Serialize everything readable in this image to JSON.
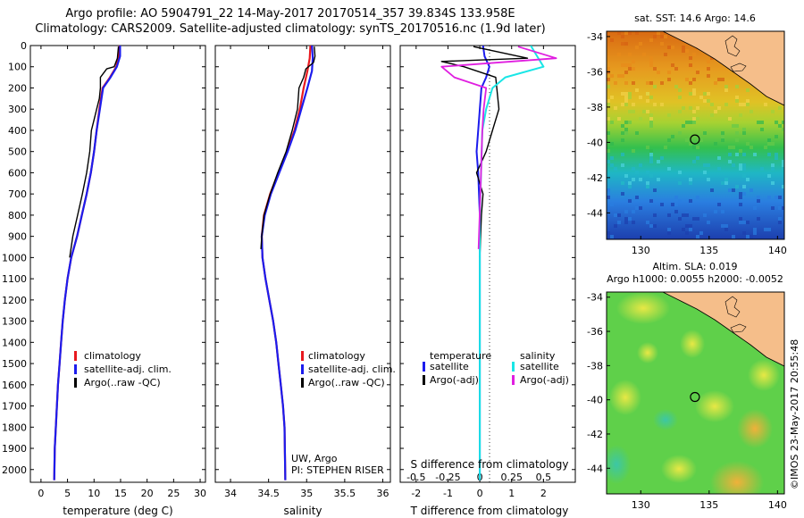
{
  "titles": {
    "line1": "Argo profile: AO 5904791_22 14-May-2017 20170514_357 39.834S 133.958E",
    "line2": "Climatology: CARS2009. Satellite-adjusted climatology: synTS_20170516.nc (1.9d later)"
  },
  "credit": "©IMOS 23-May-2017 20:55:48",
  "colors": {
    "climatology": "#e8191f",
    "satellite": "#1c1ced",
    "argo": "#000000",
    "salinity_satellite": "#19e6e6",
    "salinity_argo": "#e01ee0"
  },
  "chart_data": [
    {
      "type": "line",
      "xlabel": "temperature (deg C)",
      "ylabel": "",
      "xlim": [
        -2,
        31
      ],
      "ylim": [
        2060,
        0
      ],
      "xticks": [
        0,
        5,
        10,
        15,
        20,
        25,
        30
      ],
      "yticks": [
        0,
        100,
        200,
        300,
        400,
        500,
        600,
        700,
        800,
        900,
        1000,
        1100,
        1200,
        1300,
        1400,
        1500,
        1600,
        1700,
        1800,
        1900,
        2000
      ],
      "legend": [
        "climatology",
        "satellite-adj. clim.",
        "Argo(..raw -QC)"
      ],
      "legend_position": "lower-center",
      "series": [
        {
          "name": "climatology",
          "x": [
            14.8,
            14.6,
            14.2,
            13.0,
            11.6,
            11.0,
            10.5,
            10.0,
            9.4,
            8.6,
            7.7,
            6.8,
            5.7,
            5.0,
            4.5,
            4.1,
            3.8,
            3.5,
            3.2,
            3.0,
            2.8,
            2.6,
            2.5
          ],
          "y": [
            0,
            50,
            100,
            150,
            200,
            300,
            400,
            500,
            600,
            700,
            800,
            900,
            1000,
            1100,
            1200,
            1300,
            1400,
            1500,
            1600,
            1700,
            1800,
            1900,
            2050
          ]
        },
        {
          "name": "satellite-adj. clim.",
          "x": [
            14.9,
            14.9,
            14.3,
            13.1,
            11.7,
            11.1,
            10.5,
            10.0,
            9.4,
            8.6,
            7.7,
            6.8,
            5.7,
            5.0,
            4.5,
            4.1,
            3.8,
            3.5,
            3.2,
            3.0,
            2.8,
            2.6,
            2.5
          ],
          "y": [
            0,
            50,
            100,
            150,
            200,
            300,
            400,
            500,
            600,
            700,
            800,
            900,
            1000,
            1100,
            1200,
            1300,
            1400,
            1500,
            1600,
            1700,
            1800,
            1900,
            2050
          ]
        },
        {
          "name": "Argo(..raw -QC)",
          "x": [
            14.6,
            14.4,
            13.8,
            12.4,
            11.2,
            11.2,
            11.0,
            10.5,
            10.0,
            9.5,
            9.2,
            8.6,
            7.8,
            6.9,
            6.0,
            5.4
          ],
          "y": [
            5,
            60,
            100,
            110,
            150,
            200,
            250,
            300,
            350,
            400,
            500,
            600,
            700,
            800,
            900,
            1000
          ]
        }
      ]
    },
    {
      "type": "line",
      "xlabel": "salinity",
      "ylabel": "",
      "xlim": [
        33.8,
        36.1
      ],
      "ylim": [
        2060,
        0
      ],
      "xticks": [
        34,
        34.5,
        35,
        35.5,
        36
      ],
      "legend": [
        "climatology",
        "satellite-adj. clim.",
        "Argo(..raw -QC)"
      ],
      "legend_position": "lower-right",
      "annotations": [
        "UW, Argo",
        "PI: STEPHEN RISER"
      ],
      "series": [
        {
          "name": "climatology",
          "x": [
            35.05,
            35.04,
            35.01,
            34.96,
            34.91,
            34.84,
            34.74,
            34.63,
            34.52,
            34.44,
            34.41,
            34.42,
            34.46,
            34.51,
            34.56,
            34.6,
            34.63,
            34.66,
            34.69,
            34.71,
            34.72
          ],
          "y": [
            0,
            60,
            120,
            200,
            300,
            400,
            500,
            600,
            700,
            800,
            900,
            1000,
            1100,
            1200,
            1300,
            1400,
            1500,
            1600,
            1700,
            1800,
            2050
          ]
        },
        {
          "name": "satellite-adj. clim.",
          "x": [
            35.07,
            35.08,
            35.07,
            35.01,
            34.93,
            34.85,
            34.75,
            34.64,
            34.53,
            34.45,
            34.41,
            34.42,
            34.46,
            34.51,
            34.56,
            34.6,
            34.63,
            34.66,
            34.69,
            34.71,
            34.72
          ],
          "y": [
            0,
            60,
            120,
            200,
            300,
            400,
            500,
            600,
            700,
            800,
            900,
            1000,
            1100,
            1200,
            1300,
            1400,
            1500,
            1600,
            1700,
            1800,
            2050
          ]
        },
        {
          "name": "Argo(..raw -QC)",
          "x": [
            35.1,
            35.11,
            35.09,
            34.99,
            34.96,
            34.9,
            34.88,
            34.81,
            34.73,
            34.62,
            34.52,
            34.44,
            34.41,
            34.4
          ],
          "y": [
            5,
            50,
            80,
            110,
            150,
            200,
            300,
            400,
            500,
            600,
            700,
            800,
            900,
            960
          ]
        }
      ]
    },
    {
      "type": "line",
      "xlabel": "T difference from climatology",
      "x2label": "S difference from climatology",
      "xlim": [
        -2.5,
        3.0
      ],
      "x2lim": [
        -0.625,
        0.75
      ],
      "ylim": [
        2060,
        0
      ],
      "xticks": [
        -2,
        -1,
        0,
        1,
        2
      ],
      "x2ticks": [
        -0.5,
        -0.25,
        0,
        0.25,
        0.5
      ],
      "legend_groups": [
        {
          "title": "temperature",
          "entries": [
            "satellite",
            "Argo(-adj)"
          ]
        },
        {
          "title": "salinity",
          "entries": [
            "satellite",
            "Argo(-adj)"
          ]
        }
      ],
      "legend_position": "lower-center",
      "series": [
        {
          "name": "temperature satellite",
          "x": [
            0.1,
            0.15,
            0.3,
            0.2,
            0.05,
            0,
            -0.05,
            -0.1,
            -0.05,
            0,
            0,
            0
          ],
          "y": [
            0,
            50,
            100,
            150,
            200,
            300,
            400,
            500,
            600,
            800,
            1200,
            2050
          ]
        },
        {
          "name": "temperature Argo(-adj)",
          "x": [
            -0.2,
            1.5,
            -1.2,
            -0.5,
            0.5,
            0.6,
            0.4,
            0.2,
            -0.1,
            0.1,
            0.05,
            0
          ],
          "y": [
            5,
            60,
            75,
            100,
            150,
            300,
            400,
            500,
            600,
            700,
            800,
            1000
          ]
        },
        {
          "name": "salinity satellite",
          "x": [
            0.4,
            0.45,
            0.5,
            0.2,
            0.1,
            0.05,
            0.02,
            0.01,
            0,
            0,
            0
          ],
          "y": [
            0,
            50,
            100,
            150,
            200,
            300,
            400,
            600,
            800,
            1200,
            2050
          ]
        },
        {
          "name": "salinity Argo(-adj)",
          "x": [
            0.3,
            0.6,
            -0.3,
            -0.2,
            0.05,
            0.03,
            0.02,
            0.01,
            -0.01
          ],
          "y": [
            5,
            60,
            100,
            150,
            200,
            300,
            400,
            600,
            960
          ]
        }
      ]
    },
    {
      "type": "heatmap",
      "title": "sat. SST: 14.6 Argo: 14.6",
      "xlim": [
        127.5,
        140.5
      ],
      "ylim": [
        -45.5,
        -33.7
      ],
      "xticks": [
        130,
        135,
        140
      ],
      "yticks": [
        -34,
        -36,
        -38,
        -40,
        -42,
        -44
      ],
      "marker": {
        "lon": 133.958,
        "lat": -39.834
      }
    },
    {
      "type": "heatmap",
      "title": "Altim. SLA: 0.019",
      "subtitle": "Argo h1000: 0.0055 h2000: -0.0052",
      "xlim": [
        127.5,
        140.5
      ],
      "ylim": [
        -45.5,
        -33.7
      ],
      "xticks": [
        130,
        135,
        140
      ],
      "yticks": [
        -34,
        -36,
        -38,
        -40,
        -42,
        -44
      ],
      "marker": {
        "lon": 133.958,
        "lat": -39.834
      }
    }
  ]
}
